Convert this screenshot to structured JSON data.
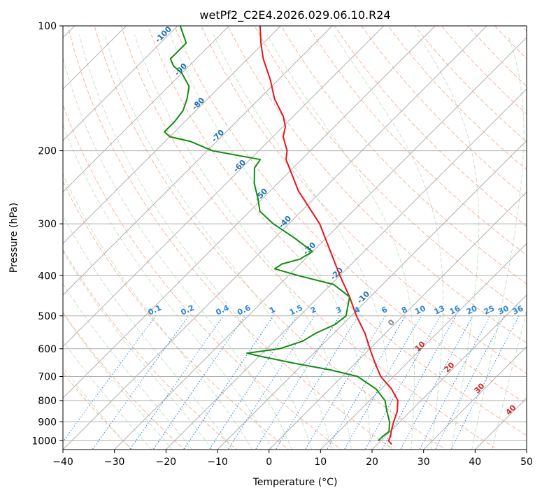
{
  "chart_data": {
    "type": "line",
    "subtype": "skew-t log-p diagram",
    "title": "wetPf2_C2E4.2026.029.06.10.R24",
    "xlabel": "Temperature (°C)",
    "ylabel": "Pressure (hPa)",
    "xlim": [
      -40,
      50
    ],
    "ylim": [
      1050,
      100
    ],
    "x_ticks": [
      -40,
      -30,
      -20,
      -10,
      0,
      10,
      20,
      30,
      40,
      50
    ],
    "y_ticks": [
      100,
      200,
      300,
      400,
      500,
      600,
      700,
      800,
      900,
      1000
    ],
    "grid": true,
    "series": [
      {
        "name": "temperature",
        "color": "#e8141a",
        "p": [
          1020,
          1000,
          975,
          950,
          900,
          850,
          800,
          750,
          700,
          650,
          600,
          550,
          500,
          450,
          400,
          350,
          300,
          250,
          210,
          200,
          185,
          175,
          165,
          150,
          135,
          120,
          110,
          100
        ],
        "t": [
          22.8,
          21.5,
          21.0,
          20.2,
          18.8,
          17.5,
          15.5,
          12.0,
          7.5,
          3.8,
          0.0,
          -4.0,
          -9.0,
          -14.0,
          -20.0,
          -26.5,
          -34.0,
          -44.5,
          -53.0,
          -54.5,
          -58.0,
          -59.5,
          -62.0,
          -67.0,
          -71.5,
          -77.0,
          -80.5,
          -84.0
        ]
      },
      {
        "name": "dewpoint",
        "color": "#128c12",
        "p": [
          1000,
          975,
          950,
          900,
          850,
          800,
          750,
          700,
          675,
          650,
          625,
          615,
          600,
          575,
          550,
          525,
          500,
          450,
          420,
          400,
          385,
          375,
          365,
          350,
          325,
          300,
          280,
          260,
          240,
          220,
          210,
          200,
          190,
          185,
          180,
          170,
          160,
          150,
          140,
          130,
          125,
          120,
          110,
          100
        ],
        "t": [
          19.5,
          19.5,
          19.8,
          18.0,
          15.5,
          13.0,
          9.0,
          3.0,
          -3.5,
          -12.0,
          -20.0,
          -23.0,
          -17.5,
          -14.5,
          -13.5,
          -11.5,
          -11.0,
          -14.0,
          -19.5,
          -28.0,
          -34.0,
          -33.5,
          -31.0,
          -30.0,
          -36.0,
          -43.0,
          -48.0,
          -51.0,
          -54.5,
          -57.5,
          -58.0,
          -69.0,
          -75.0,
          -80.0,
          -82.0,
          -82.0,
          -82.5,
          -84.0,
          -86.0,
          -90.0,
          -93.0,
          -95.0,
          -95.0,
          -99.5
        ]
      }
    ],
    "dry_adiabat_labels": [
      -100,
      -90,
      -80,
      -70,
      -60,
      -50,
      -40,
      -30,
      -20,
      -10
    ],
    "moist_adiabat_labels": [
      0,
      10,
      20,
      30,
      40
    ],
    "mixing_ratio_labels": [
      "0.1",
      "0.2",
      "0.4",
      "0.6",
      "1",
      "1.5",
      "2",
      "3",
      "4",
      "6",
      "8",
      "10",
      "13",
      "16",
      "20",
      "25",
      "30",
      "36"
    ]
  }
}
